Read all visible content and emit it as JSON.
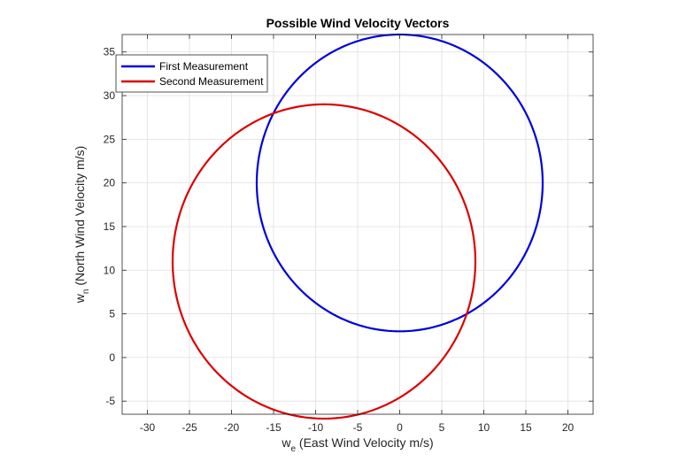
{
  "chart_data": {
    "type": "line",
    "title": "Possible Wind Velocity Vectors",
    "xlabel": {
      "main": "w",
      "sub": "e",
      "rest": " (East Wind Velocity m/s)"
    },
    "ylabel": {
      "main": "w",
      "sub": "n",
      "rest": " (North Wind Velocity m/s)"
    },
    "xlim": [
      -33,
      23
    ],
    "ylim": [
      -6.5,
      37
    ],
    "xticks": [
      -30,
      -25,
      -20,
      -15,
      -10,
      -5,
      0,
      5,
      10,
      15,
      20
    ],
    "yticks": [
      -5,
      0,
      5,
      10,
      15,
      20,
      25,
      30,
      35
    ],
    "grid": true,
    "legend_position": "top-left",
    "series": [
      {
        "name": "First Measurement",
        "color": "#0000dd",
        "shape": "circle",
        "center": [
          0,
          20
        ],
        "radius": 17
      },
      {
        "name": "Second Measurement",
        "color": "#dd0000",
        "shape": "circle",
        "center": [
          -9,
          11
        ],
        "radius": 18
      }
    ]
  }
}
